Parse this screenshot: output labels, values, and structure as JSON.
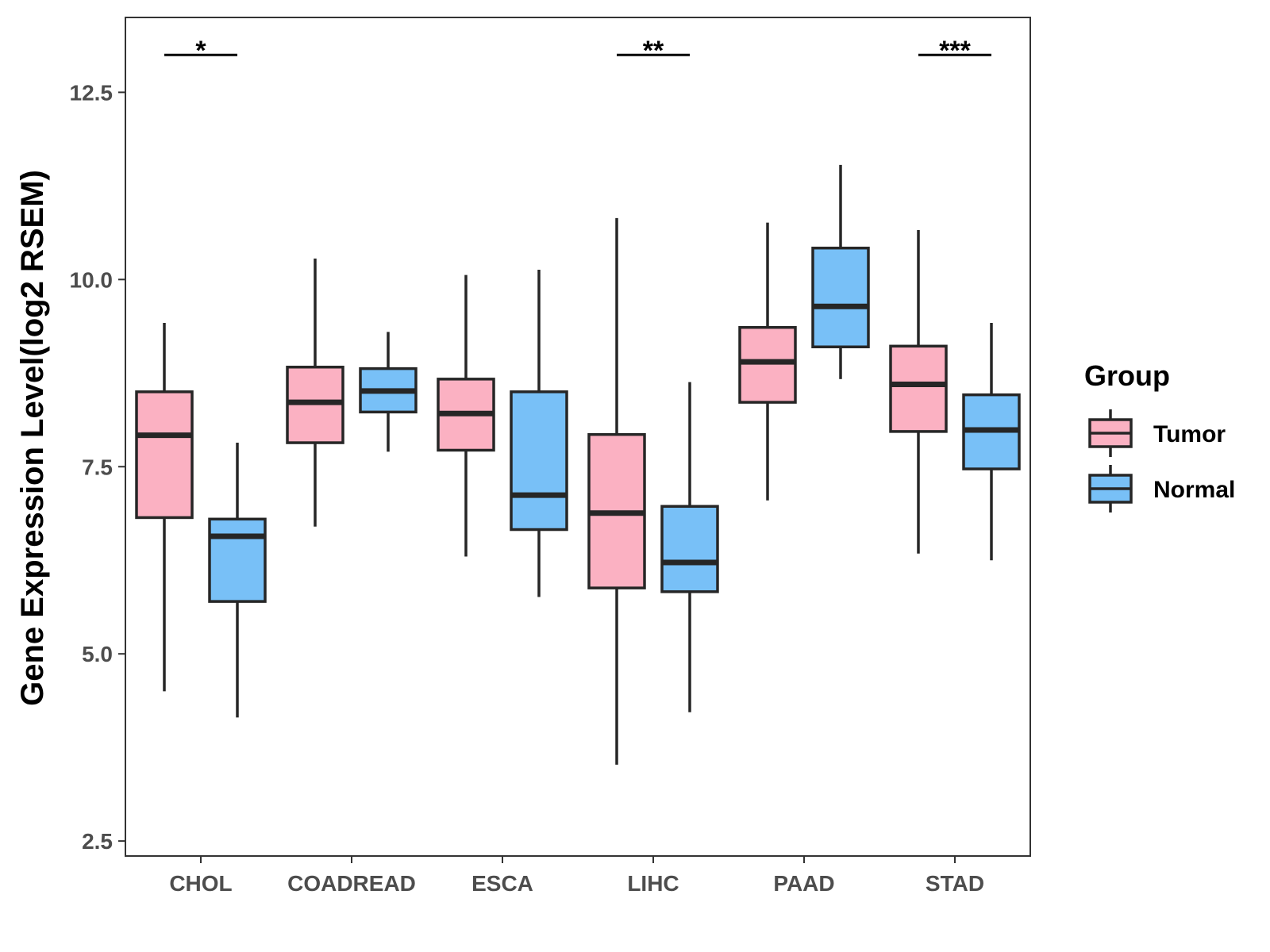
{
  "chart_data": {
    "type": "boxplot",
    "title": "",
    "xlabel": "",
    "ylabel": "Gene Expression Level(log2 RSEM)",
    "ylim": [
      2.3,
      13.5
    ],
    "yticks": [
      "2.5",
      "5.0",
      "7.5",
      "10.0",
      "12.5"
    ],
    "categories": [
      "CHOL",
      "COADREAD",
      "ESCA",
      "LIHC",
      "PAAD",
      "STAD"
    ],
    "legend": {
      "title": "Group",
      "position": "right",
      "entries": [
        "Tumor",
        "Normal"
      ]
    },
    "colors": {
      "Tumor": "#fbb1c2",
      "Normal": "#78c0f7",
      "outline": "#262626"
    },
    "series": [
      {
        "name": "Tumor",
        "boxes": [
          {
            "min": 4.5,
            "q1": 6.82,
            "median": 7.92,
            "q3": 8.5,
            "max": 9.42
          },
          {
            "min": 6.7,
            "q1": 7.82,
            "median": 8.36,
            "q3": 8.83,
            "max": 10.28
          },
          {
            "min": 6.3,
            "q1": 7.72,
            "median": 8.21,
            "q3": 8.67,
            "max": 10.06
          },
          {
            "min": 3.52,
            "q1": 5.88,
            "median": 6.88,
            "q3": 7.93,
            "max": 10.82
          },
          {
            "min": 7.05,
            "q1": 8.36,
            "median": 8.9,
            "q3": 9.36,
            "max": 10.76
          },
          {
            "min": 6.34,
            "q1": 7.97,
            "median": 8.6,
            "q3": 9.11,
            "max": 10.66
          }
        ]
      },
      {
        "name": "Normal",
        "boxes": [
          {
            "min": 4.15,
            "q1": 5.7,
            "median": 6.57,
            "q3": 6.8,
            "max": 7.82
          },
          {
            "min": 7.7,
            "q1": 8.23,
            "median": 8.51,
            "q3": 8.81,
            "max": 9.3
          },
          {
            "min": 5.76,
            "q1": 6.66,
            "median": 7.12,
            "q3": 8.5,
            "max": 10.13
          },
          {
            "min": 4.22,
            "q1": 5.83,
            "median": 6.22,
            "q3": 6.97,
            "max": 8.63
          },
          {
            "min": 8.67,
            "q1": 9.1,
            "median": 9.64,
            "q3": 10.42,
            "max": 11.53
          },
          {
            "min": 6.25,
            "q1": 7.47,
            "median": 7.99,
            "q3": 8.46,
            "max": 9.42
          }
        ]
      }
    ],
    "significance": [
      {
        "category": "CHOL",
        "label": "*",
        "y": 13.0
      },
      {
        "category": "LIHC",
        "label": "**",
        "y": 13.0
      },
      {
        "category": "STAD",
        "label": "***",
        "y": 13.0
      }
    ]
  }
}
